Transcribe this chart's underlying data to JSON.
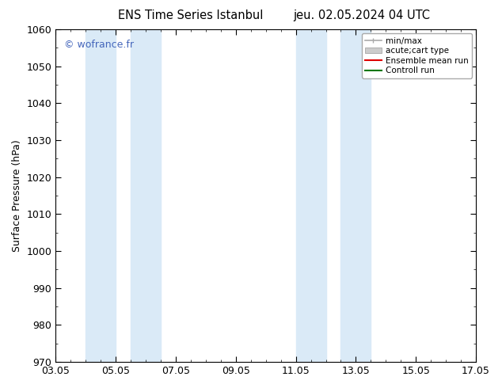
{
  "title_left": "ENS Time Series Istanbul",
  "title_right": "jeu. 02.05.2024 04 UTC",
  "ylabel": "Surface Pressure (hPa)",
  "ylim": [
    970,
    1060
  ],
  "yticks": [
    970,
    980,
    990,
    1000,
    1010,
    1020,
    1030,
    1040,
    1050,
    1060
  ],
  "xtick_labels": [
    "03.05",
    "05.05",
    "07.05",
    "09.05",
    "11.05",
    "13.05",
    "15.05",
    "17.05"
  ],
  "xmin": 0.0,
  "xmax": 14.0,
  "shaded_bands": [
    {
      "xmin": 1.0,
      "xmax": 2.0
    },
    {
      "xmin": 2.75,
      "xmax": 3.5
    },
    {
      "xmin": 7.75,
      "xmax": 8.5
    },
    {
      "xmin": 9.0,
      "xmax": 10.0
    }
  ],
  "shade_color": "#daeaf7",
  "background_color": "#ffffff",
  "watermark": "© wofrance.fr",
  "watermark_color": "#4466bb",
  "legend_items": [
    {
      "label": "min/max",
      "color": "#aaaaaa",
      "lw": 1.2
    },
    {
      "label": "acute;cart type",
      "color": "#cccccc",
      "lw": 8
    },
    {
      "label": "Ensemble mean run",
      "color": "#dd0000",
      "lw": 1.5
    },
    {
      "label": "Controll run",
      "color": "#007700",
      "lw": 1.5
    }
  ],
  "font_size": 9,
  "title_font_size": 10.5,
  "watermark_fontsize": 9
}
